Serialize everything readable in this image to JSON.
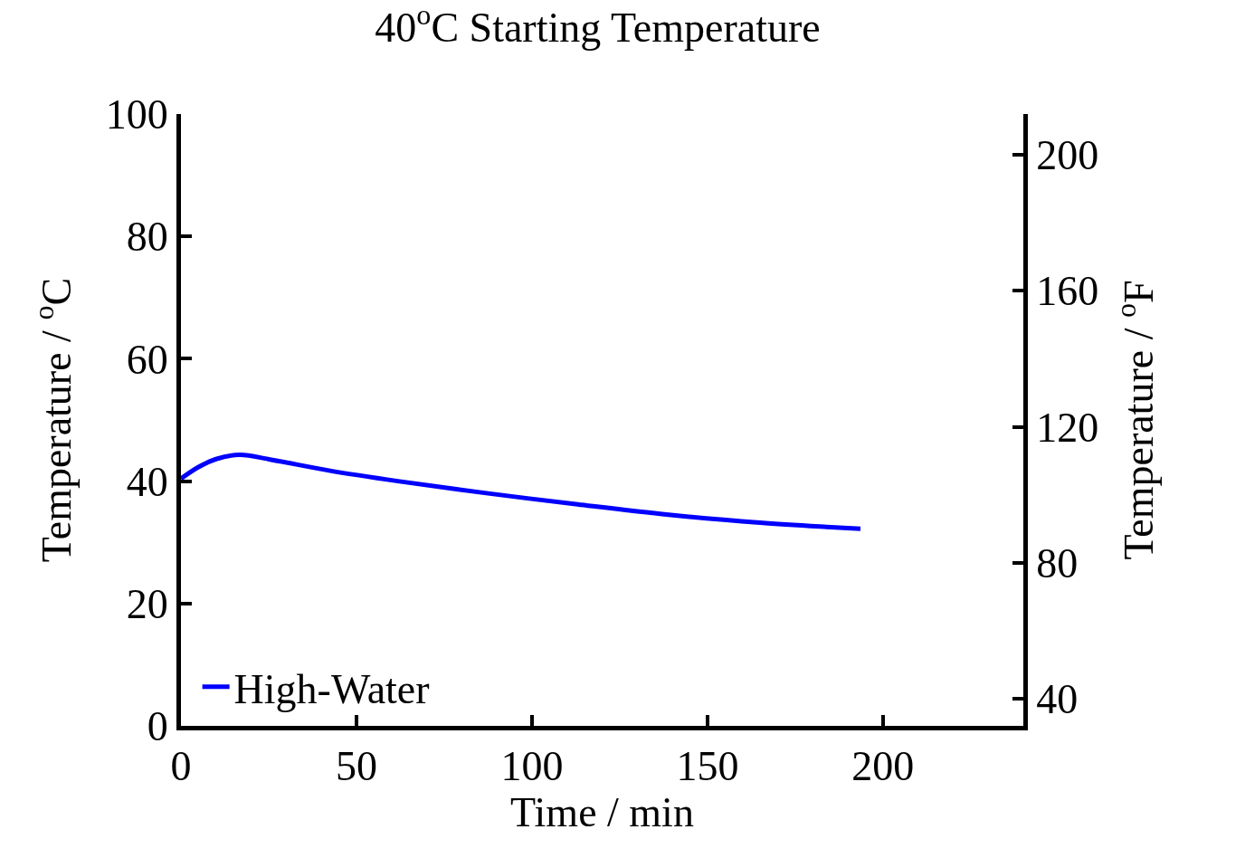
{
  "chart_data": {
    "type": "line",
    "title": "40$^{o}$C Starting Temperature",
    "xlabel": "Time / min",
    "ylabel": "Temperature / $^{o}$C",
    "y2label": "Temperature / $^{o}$F",
    "x": [
      0,
      5,
      10,
      16.7,
      25.7,
      42.5,
      61.8,
      87.5,
      113,
      139,
      165,
      184,
      193.6
    ],
    "series": [
      {
        "name": "High-Water",
        "color": "#0000ff",
        "values": [
          40.4,
          42.3,
          43.6,
          44.3,
          43.5,
          41.7,
          40.0,
          38.0,
          36.2,
          34.5,
          33.2,
          32.5,
          32.2
        ]
      }
    ],
    "xlim": [
      0,
      240
    ],
    "xticks": [
      0,
      50,
      100,
      150,
      200
    ],
    "ylim": [
      0,
      100
    ],
    "yticks": [
      0,
      20,
      40,
      60,
      80,
      100
    ],
    "y2lim": [
      32,
      212
    ],
    "y2ticks": [
      40,
      80,
      120,
      160,
      200
    ],
    "grid": false,
    "legend": "bottom left",
    "marker": "none",
    "line_style": "solid"
  }
}
